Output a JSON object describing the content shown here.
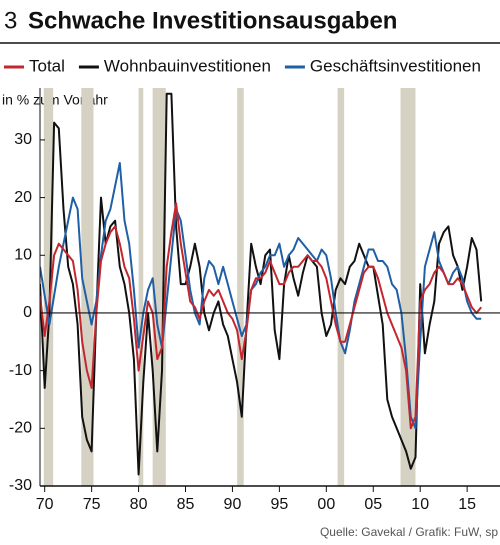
{
  "chart_data": {
    "type": "line",
    "figure_number": "3",
    "title": "Schwache Investitionsausgaben",
    "y_label": "in % zum Vorjahr",
    "source": "Quelle: Gavekal / Grafik: FuW, sp",
    "x": [
      1969.5,
      1970,
      1970.5,
      1971,
      1971.5,
      1972,
      1972.5,
      1973,
      1973.5,
      1974,
      1974.5,
      1975,
      1975.5,
      1976,
      1976.5,
      1977,
      1977.5,
      1978,
      1978.5,
      1979,
      1979.5,
      1980,
      1980.5,
      1981,
      1981.5,
      1982,
      1982.5,
      1983,
      1983.5,
      1984,
      1984.5,
      1985,
      1985.5,
      1986,
      1986.5,
      1987,
      1987.5,
      1988,
      1988.5,
      1989,
      1989.5,
      1990,
      1990.5,
      1991,
      1991.5,
      1992,
      1992.5,
      1993,
      1993.5,
      1994,
      1994.5,
      1995,
      1995.5,
      1996,
      1996.5,
      1997,
      1997.5,
      1998,
      1998.5,
      1999,
      1999.5,
      2000,
      2000.5,
      2001,
      2001.5,
      2002,
      2002.5,
      2003,
      2003.5,
      2004,
      2004.5,
      2005,
      2005.5,
      2006,
      2006.5,
      2007,
      2007.5,
      2008,
      2008.5,
      2009,
      2009.5,
      2010,
      2010.5,
      2011,
      2011.5,
      2012,
      2012.5,
      2013,
      2013.5,
      2014,
      2014.5,
      2015,
      2015.5,
      2016,
      2016.5
    ],
    "series": [
      {
        "name": "Total",
        "color": "#c4262e",
        "values": [
          3,
          -4,
          2,
          10,
          12,
          11,
          10,
          9,
          4,
          -5,
          -10,
          -13,
          0,
          9,
          12,
          14,
          15,
          12,
          8,
          6,
          -1,
          -10,
          -4,
          2,
          0,
          -8,
          -6,
          8,
          14,
          19,
          12,
          7,
          2,
          1,
          -1,
          2,
          4,
          3,
          4,
          2,
          0,
          -1,
          -3,
          -8,
          -3,
          4,
          6,
          6,
          7,
          9,
          7,
          5,
          5,
          7,
          8,
          8,
          9,
          10,
          9,
          9,
          8,
          6,
          2,
          -2,
          -5,
          -5,
          -2,
          1,
          4,
          7,
          8,
          8,
          6,
          3,
          0,
          -2,
          -4,
          -6,
          -10,
          -20,
          -18,
          2,
          4,
          5,
          7,
          8,
          7,
          5,
          5,
          6,
          5,
          3,
          1,
          0,
          1
        ]
      },
      {
        "name": "Wohnbauinvestitionen",
        "color": "#111111",
        "values": [
          5,
          -13,
          0,
          33,
          32,
          18,
          8,
          5,
          -2,
          -18,
          -22,
          -24,
          0,
          20,
          12,
          15,
          16,
          8,
          5,
          0,
          -8,
          -28,
          -12,
          0,
          -10,
          -24,
          -10,
          38,
          38,
          15,
          5,
          5,
          8,
          12,
          8,
          0,
          -3,
          0,
          2,
          -2,
          -4,
          -8,
          -12,
          -18,
          -2,
          12,
          8,
          5,
          10,
          11,
          -3,
          -8,
          5,
          10,
          6,
          3,
          7,
          10,
          9,
          8,
          0,
          -4,
          -2,
          4,
          6,
          5,
          8,
          9,
          12,
          10,
          8,
          8,
          3,
          -2,
          -15,
          -18,
          -20,
          -22,
          -24,
          -27,
          -25,
          5,
          -7,
          -2,
          2,
          12,
          14,
          15,
          10,
          8,
          4,
          8,
          13,
          11,
          2
        ]
      },
      {
        "name": "Geschäftsinvestitionen",
        "color": "#1f5fa6",
        "values": [
          8,
          3,
          -2,
          3,
          8,
          12,
          16,
          20,
          18,
          6,
          2,
          -2,
          2,
          10,
          16,
          18,
          22,
          26,
          16,
          12,
          4,
          -6,
          0,
          4,
          6,
          -2,
          -6,
          2,
          10,
          18,
          16,
          10,
          4,
          0,
          -2,
          6,
          9,
          8,
          5,
          8,
          5,
          2,
          -1,
          -4,
          -2,
          4,
          5,
          7,
          8,
          10,
          10,
          12,
          8,
          10,
          11,
          13,
          12,
          11,
          10,
          9,
          11,
          10,
          6,
          0,
          -5,
          -7,
          -3,
          2,
          5,
          8,
          11,
          11,
          9,
          9,
          8,
          5,
          4,
          0,
          -8,
          -18,
          -20,
          -5,
          8,
          11,
          14,
          9,
          7,
          5,
          7,
          8,
          6,
          2,
          0,
          -1,
          -1
        ]
      }
    ],
    "shaded_periods": [
      [
        1969.9,
        1970.9
      ],
      [
        1973.9,
        1975.2
      ],
      [
        1980.0,
        1980.5
      ],
      [
        1981.5,
        1982.9
      ],
      [
        1990.5,
        1991.2
      ],
      [
        2001.2,
        2001.9
      ],
      [
        2007.9,
        2009.5
      ]
    ],
    "shade_color": "#d5d1c3",
    "xlim": [
      1969.5,
      2018.5
    ],
    "ylim": [
      -30,
      39
    ],
    "xticks": [
      {
        "value": 1970,
        "label": "70"
      },
      {
        "value": 1975,
        "label": "75"
      },
      {
        "value": 1980,
        "label": "80"
      },
      {
        "value": 1985,
        "label": "85"
      },
      {
        "value": 1990,
        "label": "90"
      },
      {
        "value": 1995,
        "label": "95"
      },
      {
        "value": 2000,
        "label": "00"
      },
      {
        "value": 2005,
        "label": "05"
      },
      {
        "value": 2010,
        "label": "10"
      },
      {
        "value": 2015,
        "label": "15"
      }
    ],
    "yticks": [
      -30,
      -20,
      -10,
      0,
      10,
      20,
      30
    ]
  }
}
